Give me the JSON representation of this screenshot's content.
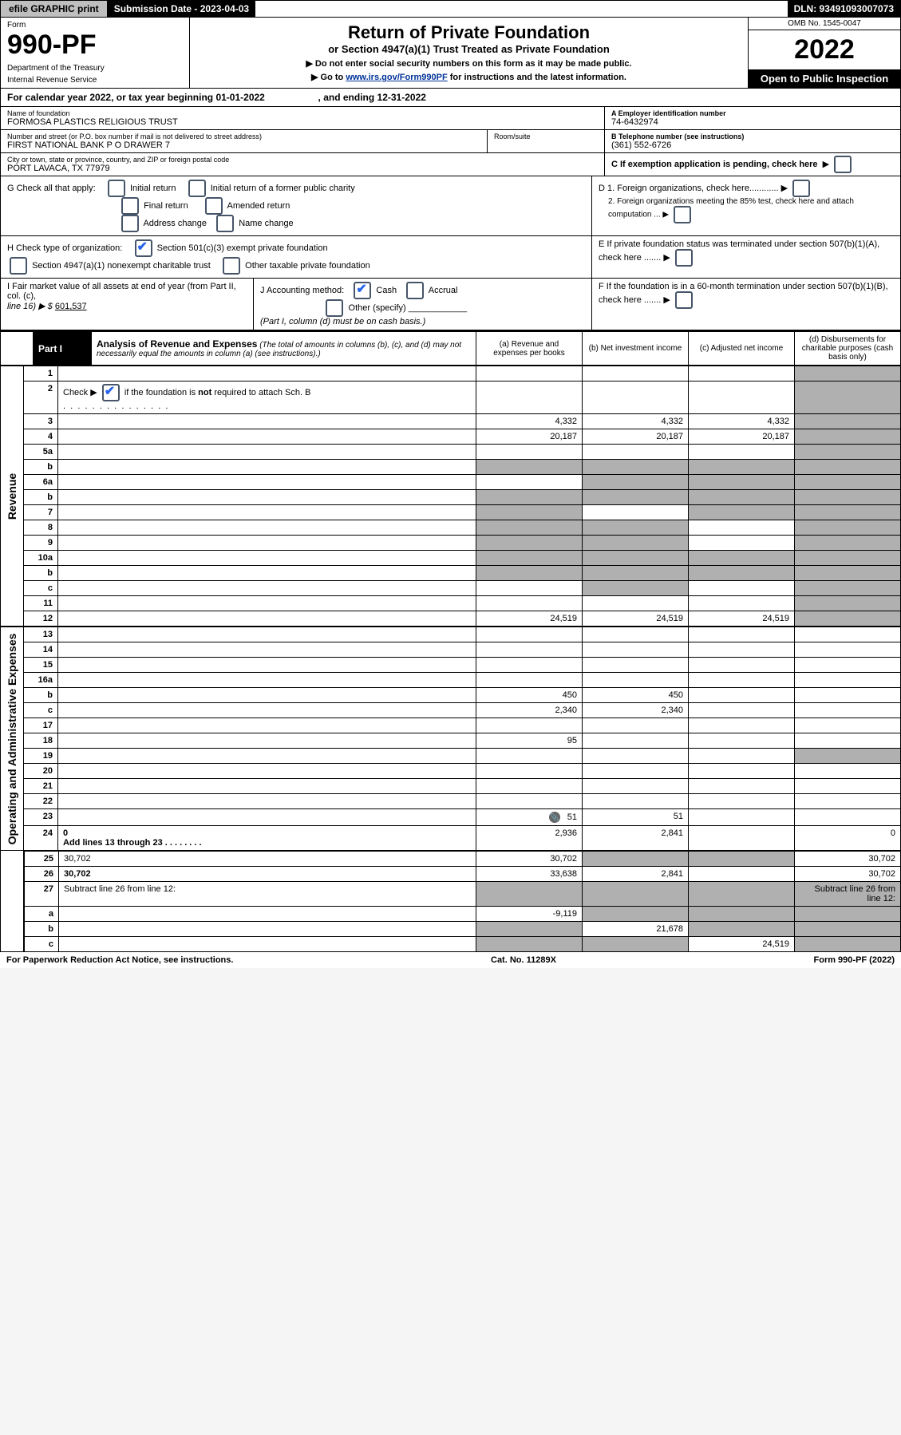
{
  "topbar": {
    "efile": "efile GRAPHIC print",
    "submission": "Submission Date - 2023-04-03",
    "dln": "DLN: 93491093007073"
  },
  "header": {
    "form_label": "Form",
    "form_no": "990-PF",
    "dept1": "Department of the Treasury",
    "dept2": "Internal Revenue Service",
    "title": "Return of Private Foundation",
    "subtitle": "or Section 4947(a)(1) Trust Treated as Private Foundation",
    "note1": "▶ Do not enter social security numbers on this form as it may be made public.",
    "note2_pre": "▶ Go to ",
    "note2_link": "www.irs.gov/Form990PF",
    "note2_post": " for instructions and the latest information.",
    "omb": "OMB No. 1545-0047",
    "year": "2022",
    "open": "Open to Public Inspection"
  },
  "calendar": {
    "text_pre": "For calendar year 2022, or tax year beginning ",
    "begin": "01-01-2022",
    "mid": " , and ending ",
    "end": "12-31-2022"
  },
  "info": {
    "name_lbl": "Name of foundation",
    "name_val": "FORMOSA PLASTICS RELIGIOUS TRUST",
    "addr_lbl": "Number and street (or P.O. box number if mail is not delivered to street address)",
    "addr_val": "FIRST NATIONAL BANK P O DRAWER 7",
    "room_lbl": "Room/suite",
    "room_val": "",
    "city_lbl": "City or town, state or province, country, and ZIP or foreign postal code",
    "city_val": "PORT LAVACA, TX  77979",
    "ein_lbl": "A Employer identification number",
    "ein_val": "74-6432974",
    "tel_lbl": "B Telephone number (see instructions)",
    "tel_val": "(361) 552-6726",
    "c_lbl": "C If exemption application is pending, check here",
    "d1_lbl": "D 1. Foreign organizations, check here............",
    "d2_lbl": "2. Foreign organizations meeting the 85% test, check here and attach computation ...",
    "e_lbl": "E  If private foundation status was terminated under section 507(b)(1)(A), check here .......",
    "f_lbl": "F  If the foundation is in a 60-month termination under section 507(b)(1)(B), check here .......",
    "g_lbl": "G Check all that apply:",
    "g_opts": [
      "Initial return",
      "Initial return of a former public charity",
      "Final return",
      "Amended return",
      "Address change",
      "Name change"
    ],
    "h_lbl": "H Check type of organization:",
    "h_opt1": "Section 501(c)(3) exempt private foundation",
    "h_opt2": "Section 4947(a)(1) nonexempt charitable trust",
    "h_opt3": "Other taxable private foundation",
    "i_lbl": "I Fair market value of all assets at end of year (from Part II, col. (c),",
    "i_line": "line 16) ▶ $",
    "i_val": "601,537",
    "j_lbl": "J Accounting method:",
    "j_cash": "Cash",
    "j_accrual": "Accrual",
    "j_other": "Other (specify)",
    "j_note": "(Part I, column (d) must be on cash basis.)"
  },
  "part1": {
    "label": "Part I",
    "title": "Analysis of Revenue and Expenses",
    "note": "(The total of amounts in columns (b), (c), and (d) may not necessarily equal the amounts in column (a) (see instructions).)",
    "col_a": "(a) Revenue and expenses per books",
    "col_b": "(b) Net investment income",
    "col_c": "(c) Adjusted net income",
    "col_d": "(d) Disbursements for charitable purposes (cash basis only)",
    "revenue_label": "Revenue",
    "expenses_label": "Operating and Administrative Expenses"
  },
  "rows": {
    "r1": {
      "n": "1",
      "d": "",
      "a": "",
      "b": "",
      "c": "",
      "shadeD": true
    },
    "r2": {
      "n": "2",
      "d_pre": "Check ▶ ",
      "d_post": " if the foundation is not required to attach Sch. B",
      "a": "",
      "b": "",
      "c": "",
      "d": "",
      "shadeD": true,
      "checked": true,
      "bold_not": true
    },
    "r3": {
      "n": "3",
      "d": "",
      "a": "4,332",
      "b": "4,332",
      "c": "4,332",
      "shadeD": true
    },
    "r4": {
      "n": "4",
      "d": "",
      "a": "20,187",
      "b": "20,187",
      "c": "20,187",
      "shadeD": true
    },
    "r5a": {
      "n": "5a",
      "d": "",
      "a": "",
      "b": "",
      "c": "",
      "shadeD": true
    },
    "r5b": {
      "n": "b",
      "d": "",
      "a": "",
      "b": "",
      "c": "",
      "shadeAll": true
    },
    "r6a": {
      "n": "6a",
      "d": "",
      "a": "",
      "b": "",
      "c": "",
      "shadeBCD": true
    },
    "r6b": {
      "n": "b",
      "d": "",
      "a": "",
      "b": "",
      "c": "",
      "shadeAll": true
    },
    "r7": {
      "n": "7",
      "d": "",
      "a": "",
      "b": "",
      "c": "",
      "shadeA": true,
      "shadeCD": true
    },
    "r8": {
      "n": "8",
      "d": "",
      "a": "",
      "b": "",
      "c": "",
      "shadeAB": true,
      "shadeD": true
    },
    "r9": {
      "n": "9",
      "d": "",
      "a": "",
      "b": "",
      "c": "",
      "shadeAB": true,
      "shadeD": true
    },
    "r10a": {
      "n": "10a",
      "d": "",
      "a": "",
      "b": "",
      "c": "",
      "shadeAll": true
    },
    "r10b": {
      "n": "b",
      "d": "",
      "a": "",
      "b": "",
      "c": "",
      "shadeAll": true
    },
    "r10c": {
      "n": "c",
      "d": "",
      "a": "",
      "b": "",
      "c": "",
      "shadeB": true,
      "shadeD": true
    },
    "r11": {
      "n": "11",
      "d": "",
      "a": "",
      "b": "",
      "c": "",
      "shadeD": true
    },
    "r12": {
      "n": "12",
      "d": "",
      "a": "24,519",
      "b": "24,519",
      "c": "24,519",
      "bold": true,
      "shadeD": true
    },
    "r13": {
      "n": "13",
      "d": "",
      "a": "",
      "b": "",
      "c": ""
    },
    "r14": {
      "n": "14",
      "d": "",
      "a": "",
      "b": "",
      "c": ""
    },
    "r15": {
      "n": "15",
      "d": "",
      "a": "",
      "b": "",
      "c": ""
    },
    "r16a": {
      "n": "16a",
      "d": "",
      "a": "",
      "b": "",
      "c": ""
    },
    "r16b": {
      "n": "b",
      "d": "",
      "a": "450",
      "b": "450",
      "c": ""
    },
    "r16c": {
      "n": "c",
      "d": "",
      "a": "2,340",
      "b": "2,340",
      "c": ""
    },
    "r17": {
      "n": "17",
      "d": "",
      "a": "",
      "b": "",
      "c": ""
    },
    "r18": {
      "n": "18",
      "d": "",
      "a": "95",
      "b": "",
      "c": ""
    },
    "r19": {
      "n": "19",
      "d": "",
      "a": "",
      "b": "",
      "c": "",
      "shadeD": true
    },
    "r20": {
      "n": "20",
      "d": "",
      "a": "",
      "b": "",
      "c": ""
    },
    "r21": {
      "n": "21",
      "d": "",
      "a": "",
      "b": "",
      "c": ""
    },
    "r22": {
      "n": "22",
      "d": "",
      "a": "",
      "b": "",
      "c": ""
    },
    "r23": {
      "n": "23",
      "d": "",
      "a": "51",
      "b": "51",
      "c": "",
      "icon": true
    },
    "r24": {
      "n": "24",
      "d": "0",
      "d2": "Add lines 13 through 23  .  .  .  .  .  .  .  .",
      "a": "2,936",
      "b": "2,841",
      "c": "",
      "bold": true
    },
    "r25": {
      "n": "25",
      "d": "30,702",
      "a": "30,702",
      "b": "",
      "c": "",
      "shadeBC": true
    },
    "r26": {
      "n": "26",
      "d": "30,702",
      "a": "33,638",
      "b": "2,841",
      "c": "",
      "bold": true
    },
    "r27": {
      "n": "27",
      "d": "Subtract line 26 from line 12:",
      "shadeAll": true
    },
    "r27a": {
      "n": "a",
      "d": "",
      "a": "-9,119",
      "b": "",
      "c": "",
      "bold": true,
      "shadeBCD": true
    },
    "r27b": {
      "n": "b",
      "d": "",
      "a": "",
      "b": "21,678",
      "c": "",
      "bold": true,
      "shadeA": true,
      "shadeCD": true
    },
    "r27c": {
      "n": "c",
      "d": "",
      "a": "",
      "b": "",
      "c": "24,519",
      "bold": true,
      "shadeAB": true,
      "shadeD": true
    }
  },
  "footer": {
    "left": "For Paperwork Reduction Act Notice, see instructions.",
    "mid": "Cat. No. 11289X",
    "right": "Form 990-PF (2022)"
  }
}
